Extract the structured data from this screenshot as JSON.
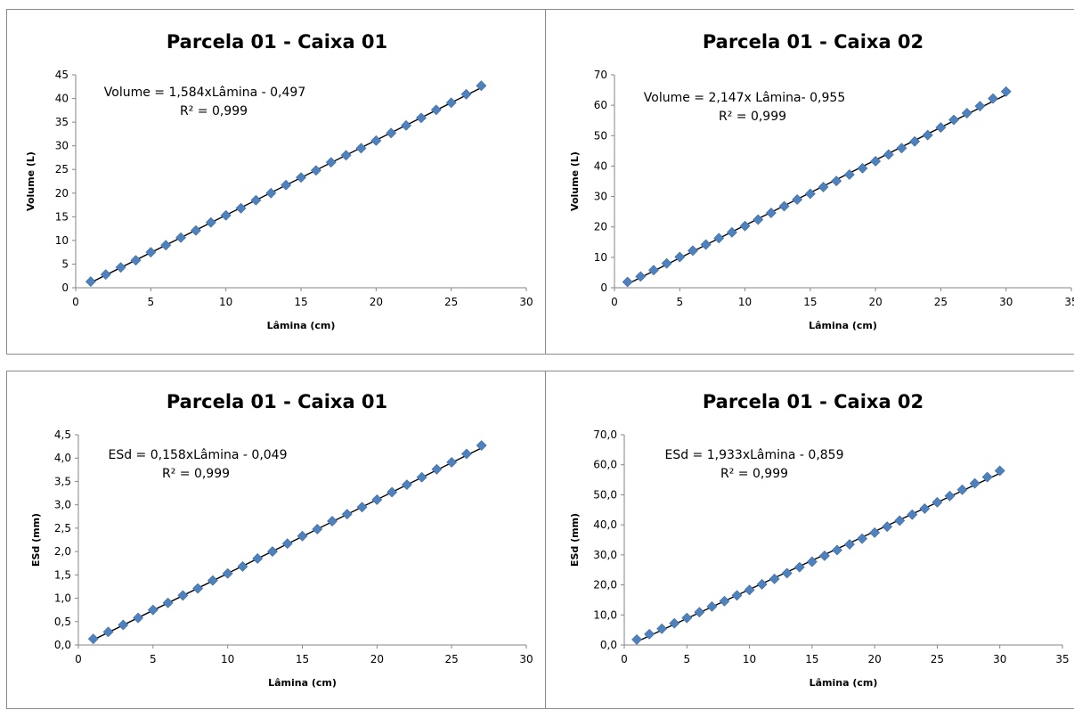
{
  "chart_data": [
    {
      "type": "scatter",
      "title": "Parcela 01 - Caixa 01",
      "xlabel": "Lâmina (cm)",
      "ylabel": "Volume (L)",
      "xlim": [
        0,
        30
      ],
      "ylim": [
        0,
        45
      ],
      "xticks": [
        "0",
        "5",
        "10",
        "15",
        "20",
        "25",
        "30"
      ],
      "yticks": [
        "0",
        "5",
        "10",
        "15",
        "20",
        "25",
        "30",
        "35",
        "40",
        "45"
      ],
      "grid": false,
      "legend": "none",
      "marker_color": "#4f81bd",
      "trendline": {
        "slope": 1.584,
        "intercept": -0.497
      },
      "equation": "Volume = 1,584xLâmina - 0,497",
      "r2": "R² = 0,999",
      "x": [
        1,
        2,
        3,
        4,
        5,
        6,
        7,
        8,
        9,
        10,
        11,
        12,
        13,
        14,
        15,
        16,
        17,
        18,
        19,
        20,
        21,
        22,
        23,
        24,
        25,
        26,
        27
      ],
      "y": [
        1.3,
        2.8,
        4.3,
        5.8,
        7.5,
        9.0,
        10.6,
        12.1,
        13.8,
        15.3,
        16.8,
        18.5,
        20.0,
        21.7,
        23.3,
        24.8,
        26.5,
        28.0,
        29.5,
        31.1,
        32.7,
        34.3,
        35.9,
        37.6,
        39.1,
        40.9,
        42.7
      ]
    },
    {
      "type": "scatter",
      "title": "Parcela 01 - Caixa 02",
      "xlabel": "Lâmina (cm)",
      "ylabel": "Volume (L)",
      "xlim": [
        0,
        35
      ],
      "ylim": [
        0,
        70
      ],
      "xticks": [
        "0",
        "5",
        "10",
        "15",
        "20",
        "25",
        "30",
        "35"
      ],
      "yticks": [
        "0",
        "10",
        "20",
        "30",
        "40",
        "50",
        "60",
        "70"
      ],
      "grid": false,
      "legend": "none",
      "marker_color": "#4f81bd",
      "trendline": {
        "slope": 2.147,
        "intercept": -0.955
      },
      "equation": "Volume = 2,147x Lâmina- 0,955",
      "r2": "R² = 0,999",
      "x": [
        1,
        2,
        3,
        4,
        5,
        6,
        7,
        8,
        9,
        10,
        11,
        12,
        13,
        14,
        15,
        16,
        17,
        18,
        19,
        20,
        21,
        22,
        23,
        24,
        25,
        26,
        27,
        28,
        29,
        30
      ],
      "y": [
        1.9,
        3.7,
        5.8,
        8.0,
        10.1,
        12.2,
        14.2,
        16.3,
        18.2,
        20.3,
        22.4,
        24.6,
        26.8,
        29.0,
        30.9,
        33.1,
        35.1,
        37.2,
        39.3,
        41.6,
        43.8,
        45.9,
        48.1,
        50.2,
        52.7,
        55.2,
        57.4,
        59.7,
        62.2,
        64.5
      ]
    },
    {
      "type": "scatter",
      "title": "Parcela 01 - Caixa 01",
      "xlabel": "Lâmina (cm)",
      "ylabel": "ESd (mm)",
      "xlim": [
        0,
        30
      ],
      "ylim": [
        0,
        4.5
      ],
      "xticks": [
        "0",
        "5",
        "10",
        "15",
        "20",
        "25",
        "30"
      ],
      "yticks": [
        "0,0",
        "0,5",
        "1,0",
        "1,5",
        "2,0",
        "2,5",
        "3,0",
        "3,5",
        "4,0",
        "4,5"
      ],
      "grid": false,
      "legend": "none",
      "marker_color": "#4f81bd",
      "trendline": {
        "slope": 0.158,
        "intercept": -0.049
      },
      "equation": "ESd = 0,158xLâmina - 0,049",
      "r2": "R² = 0,999",
      "x": [
        1,
        2,
        3,
        4,
        5,
        6,
        7,
        8,
        9,
        10,
        11,
        12,
        13,
        14,
        15,
        16,
        17,
        18,
        19,
        20,
        21,
        22,
        23,
        24,
        25,
        26,
        27
      ],
      "y": [
        0.13,
        0.28,
        0.43,
        0.58,
        0.75,
        0.9,
        1.06,
        1.21,
        1.38,
        1.53,
        1.68,
        1.85,
        2.0,
        2.17,
        2.33,
        2.48,
        2.65,
        2.8,
        2.95,
        3.11,
        3.27,
        3.43,
        3.59,
        3.76,
        3.91,
        4.09,
        4.27
      ]
    },
    {
      "type": "scatter",
      "title": "Parcela 01 - Caixa 02",
      "xlabel": "Lâmina (cm)",
      "ylabel": "ESd (mm)",
      "xlim": [
        0,
        35
      ],
      "ylim": [
        0,
        70
      ],
      "xticks": [
        "0",
        "5",
        "10",
        "15",
        "20",
        "25",
        "30",
        "35"
      ],
      "yticks": [
        "0,0",
        "10,0",
        "20,0",
        "30,0",
        "40,0",
        "50,0",
        "60,0",
        "70,0"
      ],
      "grid": false,
      "legend": "none",
      "marker_color": "#4f81bd",
      "trendline": {
        "slope": 1.933,
        "intercept": -0.859
      },
      "equation": "ESd = 1,933xLâmina - 0,859",
      "r2": "R² = 0,999",
      "x": [
        1,
        2,
        3,
        4,
        5,
        6,
        7,
        8,
        9,
        10,
        11,
        12,
        13,
        14,
        15,
        16,
        17,
        18,
        19,
        20,
        21,
        22,
        23,
        24,
        25,
        26,
        27,
        28,
        29,
        30
      ],
      "y": [
        1.8,
        3.6,
        5.4,
        7.2,
        9.0,
        10.9,
        12.8,
        14.6,
        16.5,
        18.3,
        20.2,
        22.0,
        23.9,
        25.9,
        27.7,
        29.7,
        31.6,
        33.5,
        35.4,
        37.4,
        39.4,
        41.4,
        43.4,
        45.4,
        47.5,
        49.6,
        51.7,
        53.8,
        55.9,
        58.0
      ]
    }
  ]
}
